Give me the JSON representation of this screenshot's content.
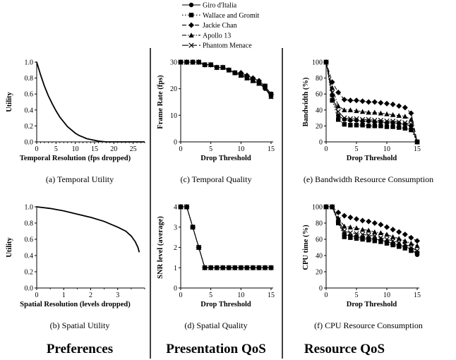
{
  "legend": [
    {
      "name": "Giro d'Italia",
      "marker": "circle",
      "dash": "solid"
    },
    {
      "name": "Wallace and Gromit",
      "marker": "square",
      "dash": "dot"
    },
    {
      "name": "Jackie Chan",
      "marker": "diamond",
      "dash": "dash"
    },
    {
      "name": "Apollo 13",
      "marker": "triangle",
      "dash": "dashdot"
    },
    {
      "name": "Phantom Menace",
      "marker": "x",
      "dash": "longdash"
    }
  ],
  "sections": {
    "preferences": "Preferences",
    "presentation": "Presentation QoS",
    "resource": "Resource QoS"
  },
  "chart_data": [
    {
      "id": "a",
      "type": "line",
      "caption": "(a) Temporal Utility",
      "xlabel": "Temporal Resolution (fps dropped)",
      "ylabel": "Utility",
      "xlim": [
        0,
        28
      ],
      "ylim": [
        0,
        1.0
      ],
      "xticks": [
        0,
        5,
        10,
        15,
        20,
        25
      ],
      "yticks": [
        0.0,
        0.2,
        0.4,
        0.6,
        0.8,
        1.0
      ],
      "xtick_labels": [
        "0",
        "5",
        "10",
        "15",
        "20",
        "25"
      ],
      "ytick_labels": [
        "0.0",
        "0.2",
        "0.4",
        "0.6",
        "0.8",
        "1.0"
      ],
      "series": [
        {
          "x": [
            0,
            1,
            2,
            3,
            4,
            5,
            6,
            7,
            8,
            9,
            10,
            11,
            12,
            13,
            14,
            15,
            16,
            18,
            20,
            22,
            24,
            26,
            28
          ],
          "y": [
            1.0,
            0.84,
            0.7,
            0.58,
            0.48,
            0.39,
            0.31,
            0.25,
            0.19,
            0.15,
            0.11,
            0.08,
            0.06,
            0.04,
            0.03,
            0.02,
            0.01,
            0.0,
            0.0,
            0.0,
            0.0,
            0.0,
            0.0
          ]
        }
      ]
    },
    {
      "id": "b",
      "type": "line",
      "caption": "(b) Spatial Utility",
      "xlabel": "Spatial Resolution (levels dropped)",
      "ylabel": "Utility",
      "xlim": [
        0,
        4
      ],
      "ylim": [
        0,
        1.0
      ],
      "xticks": [
        0,
        1,
        2,
        3
      ],
      "yticks": [
        0.0,
        0.2,
        0.4,
        0.6,
        0.8,
        1.0
      ],
      "xtick_labels": [
        "0",
        "1",
        "2",
        "3"
      ],
      "ytick_labels": [
        "0.0",
        "0.2",
        "0.4",
        "0.6",
        "0.8",
        "1.0"
      ],
      "series": [
        {
          "x": [
            0,
            0.5,
            1,
            1.5,
            2,
            2.5,
            3,
            3.3,
            3.5,
            3.65,
            3.75,
            3.8
          ],
          "y": [
            1.0,
            0.98,
            0.95,
            0.91,
            0.87,
            0.82,
            0.75,
            0.7,
            0.64,
            0.57,
            0.5,
            0.44
          ]
        }
      ]
    },
    {
      "id": "c",
      "type": "line",
      "caption": "(c) Temporal Quality",
      "xlabel": "Drop Threshold",
      "ylabel": "Frame Rate (fps)",
      "xlim": [
        0,
        15
      ],
      "ylim": [
        0,
        30
      ],
      "xticks": [
        0,
        5,
        10,
        15
      ],
      "yticks": [
        0,
        10,
        20,
        30
      ],
      "xtick_labels": [
        "0",
        "5",
        "10",
        "15"
      ],
      "ytick_labels": [
        "0",
        "10",
        "20",
        "30"
      ],
      "series": [
        {
          "x": [
            0,
            1,
            2,
            3,
            4,
            5,
            6,
            7,
            8,
            9,
            10,
            11,
            12,
            13,
            14,
            15
          ],
          "y": [
            30,
            30,
            30,
            30,
            29,
            29,
            28,
            28,
            27,
            26,
            25,
            24,
            23,
            22,
            20,
            17
          ]
        },
        {
          "x": [
            0,
            1,
            2,
            3,
            4,
            5,
            6,
            7,
            8,
            9,
            10,
            11,
            12,
            13,
            14,
            15
          ],
          "y": [
            30,
            30,
            30,
            30,
            29,
            29,
            28,
            28,
            27,
            26,
            25,
            24,
            23,
            22,
            21,
            18
          ]
        },
        {
          "x": [
            0,
            1,
            2,
            3,
            4,
            5,
            6,
            7,
            8,
            9,
            10,
            11,
            12,
            13,
            14,
            15
          ],
          "y": [
            30,
            30,
            30,
            30,
            29,
            29,
            28,
            28,
            27,
            26,
            26,
            25,
            24,
            23,
            21,
            18
          ]
        },
        {
          "x": [
            0,
            1,
            2,
            3,
            4,
            5,
            6,
            7,
            8,
            9,
            10,
            11,
            12,
            13,
            14,
            15
          ],
          "y": [
            30,
            30,
            30,
            30,
            29,
            29,
            28,
            28,
            27,
            26,
            25,
            25,
            23,
            22,
            21,
            18
          ]
        },
        {
          "x": [
            0,
            1,
            2,
            3,
            4,
            5,
            6,
            7,
            8,
            9,
            10,
            11,
            12,
            13,
            14,
            15
          ],
          "y": [
            30,
            30,
            30,
            30,
            29,
            29,
            28,
            28,
            27,
            26,
            25,
            24,
            23,
            22,
            21,
            17
          ]
        }
      ]
    },
    {
      "id": "d",
      "type": "line",
      "caption": "(d) Spatial Quality",
      "xlabel": "Drop Threshold",
      "ylabel": "SNR level (average)",
      "xlim": [
        0,
        15
      ],
      "ylim": [
        0,
        4
      ],
      "xticks": [
        0,
        5,
        10,
        15
      ],
      "yticks": [
        0,
        1,
        2,
        3,
        4
      ],
      "xtick_labels": [
        "0",
        "5",
        "10",
        "15"
      ],
      "ytick_labels": [
        "0",
        "1",
        "2",
        "3",
        "4"
      ],
      "series": [
        {
          "x": [
            0,
            1,
            2,
            3,
            4,
            5,
            6,
            7,
            8,
            9,
            10,
            11,
            12,
            13,
            14,
            15
          ],
          "y": [
            4,
            4,
            3,
            2,
            1,
            1,
            1,
            1,
            1,
            1,
            1,
            1,
            1,
            1,
            1,
            1
          ]
        },
        {
          "x": [
            0,
            1,
            2,
            3,
            4,
            5,
            6,
            7,
            8,
            9,
            10,
            11,
            12,
            13,
            14,
            15
          ],
          "y": [
            4,
            4,
            3,
            2,
            1,
            1,
            1,
            1,
            1,
            1,
            1,
            1,
            1,
            1,
            1,
            1
          ]
        },
        {
          "x": [
            0,
            1,
            2,
            3,
            4,
            5,
            6,
            7,
            8,
            9,
            10,
            11,
            12,
            13,
            14,
            15
          ],
          "y": [
            4,
            4,
            3,
            2,
            1,
            1,
            1,
            1,
            1,
            1,
            1,
            1,
            1,
            1,
            1,
            1
          ]
        },
        {
          "x": [
            0,
            1,
            2,
            3,
            4,
            5,
            6,
            7,
            8,
            9,
            10,
            11,
            12,
            13,
            14,
            15
          ],
          "y": [
            4,
            4,
            3,
            2,
            1,
            1,
            1,
            1,
            1,
            1,
            1,
            1,
            1,
            1,
            1,
            1
          ]
        },
        {
          "x": [
            0,
            1,
            2,
            3,
            4,
            5,
            6,
            7,
            8,
            9,
            10,
            11,
            12,
            13,
            14,
            15
          ],
          "y": [
            4,
            4,
            3,
            2,
            1,
            1,
            1,
            1,
            1,
            1,
            1,
            1,
            1,
            1,
            1,
            1
          ]
        }
      ]
    },
    {
      "id": "e",
      "type": "line",
      "caption": "(e) Bandwidth Resource Consumption",
      "xlabel": "Drop Threshold",
      "ylabel": "Bandwidth (%)",
      "xlim": [
        0,
        15
      ],
      "ylim": [
        0,
        100
      ],
      "xticks": [
        0,
        5,
        10,
        15
      ],
      "yticks": [
        0,
        20,
        40,
        60,
        80,
        100
      ],
      "xtick_labels": [
        "0",
        "5",
        "10",
        "15"
      ],
      "ytick_labels": [
        "0",
        "20",
        "40",
        "60",
        "80",
        "100"
      ],
      "series": [
        {
          "x": [
            0,
            1,
            2,
            3,
            4,
            5,
            6,
            7,
            8,
            9,
            10,
            11,
            12,
            13,
            14,
            15
          ],
          "y": [
            100,
            58,
            33,
            28,
            27,
            27,
            26,
            26,
            25,
            25,
            24,
            24,
            23,
            22,
            20,
            0
          ]
        },
        {
          "x": [
            0,
            1,
            2,
            3,
            4,
            5,
            6,
            7,
            8,
            9,
            10,
            11,
            12,
            13,
            14,
            15
          ],
          "y": [
            100,
            52,
            28,
            22,
            21,
            21,
            21,
            20,
            20,
            20,
            19,
            19,
            18,
            17,
            15,
            0
          ]
        },
        {
          "x": [
            0,
            1,
            2,
            3,
            4,
            5,
            6,
            7,
            8,
            9,
            10,
            11,
            12,
            13,
            14,
            15
          ],
          "y": [
            100,
            75,
            62,
            53,
            52,
            52,
            51,
            50,
            50,
            49,
            48,
            47,
            45,
            43,
            36,
            0
          ]
        },
        {
          "x": [
            0,
            1,
            2,
            3,
            4,
            5,
            6,
            7,
            8,
            9,
            10,
            11,
            12,
            13,
            14,
            15
          ],
          "y": [
            100,
            68,
            45,
            40,
            40,
            39,
            38,
            37,
            37,
            36,
            35,
            34,
            33,
            32,
            28,
            0
          ]
        },
        {
          "x": [
            0,
            1,
            2,
            3,
            4,
            5,
            6,
            7,
            8,
            9,
            10,
            11,
            12,
            13,
            14,
            15
          ],
          "y": [
            100,
            62,
            38,
            30,
            29,
            29,
            28,
            28,
            27,
            27,
            26,
            26,
            25,
            24,
            22,
            0
          ]
        }
      ]
    },
    {
      "id": "f",
      "type": "line",
      "caption": "(f) CPU Resource Consumption",
      "xlabel": "Drop Threshold",
      "ylabel": "CPU time (%)",
      "xlim": [
        0,
        15
      ],
      "ylim": [
        0,
        100
      ],
      "xticks": [
        0,
        5,
        10,
        15
      ],
      "yticks": [
        0,
        20,
        40,
        60,
        80,
        100
      ],
      "xtick_labels": [
        "0",
        "5",
        "10",
        "15"
      ],
      "ytick_labels": [
        "0",
        "20",
        "40",
        "60",
        "80",
        "100"
      ],
      "series": [
        {
          "x": [
            0,
            1,
            2,
            3,
            4,
            5,
            6,
            7,
            8,
            9,
            10,
            11,
            12,
            13,
            14,
            15
          ],
          "y": [
            100,
            100,
            82,
            66,
            64,
            63,
            62,
            61,
            60,
            59,
            57,
            55,
            53,
            51,
            48,
            41
          ]
        },
        {
          "x": [
            0,
            1,
            2,
            3,
            4,
            5,
            6,
            7,
            8,
            9,
            10,
            11,
            12,
            13,
            14,
            15
          ],
          "y": [
            100,
            100,
            80,
            63,
            62,
            61,
            60,
            59,
            58,
            57,
            55,
            53,
            51,
            49,
            46,
            43
          ]
        },
        {
          "x": [
            0,
            1,
            2,
            3,
            4,
            5,
            6,
            7,
            8,
            9,
            10,
            11,
            12,
            13,
            14,
            15
          ],
          "y": [
            100,
            100,
            93,
            89,
            87,
            85,
            83,
            82,
            80,
            78,
            75,
            72,
            69,
            66,
            62,
            58
          ]
        },
        {
          "x": [
            0,
            1,
            2,
            3,
            4,
            5,
            6,
            7,
            8,
            9,
            10,
            11,
            12,
            13,
            14,
            15
          ],
          "y": [
            100,
            100,
            86,
            76,
            75,
            74,
            72,
            71,
            69,
            68,
            66,
            63,
            61,
            58,
            55,
            52
          ]
        },
        {
          "x": [
            0,
            1,
            2,
            3,
            4,
            5,
            6,
            7,
            8,
            9,
            10,
            11,
            12,
            13,
            14,
            15
          ],
          "y": [
            100,
            100,
            84,
            70,
            68,
            67,
            66,
            65,
            64,
            62,
            60,
            58,
            56,
            54,
            50,
            46
          ]
        }
      ]
    }
  ]
}
